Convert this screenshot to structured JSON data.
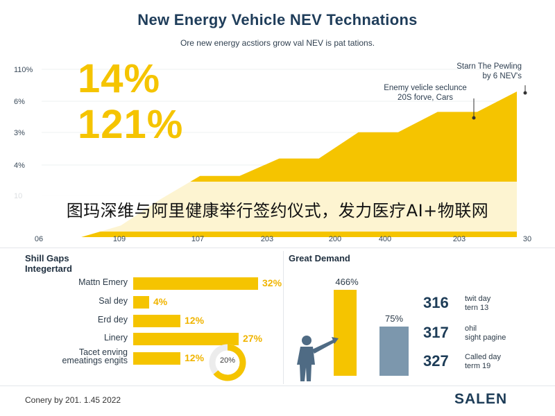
{
  "header": {
    "title": "New Energy Vehicle NEV Technations",
    "subtitle": "Ore new energy acstiors grow val NEV is pat tations."
  },
  "big_stats": [
    "14%",
    "121%"
  ],
  "callouts": {
    "top": [
      "Starn The Pewling",
      "by 6 NEV's"
    ],
    "mid": [
      "Enemy velicle seclunce",
      "20S forve, Cars"
    ]
  },
  "overlay_caption": "图玛深维与阿里健康举行签约仪式，发力医疗AI+物联网",
  "skills": {
    "title": [
      "Shill Gaps",
      "Integertard"
    ],
    "items": [
      {
        "label": [
          "Mattn Emery"
        ],
        "value": "32%",
        "fraction": 0.32
      },
      {
        "label": [
          "Sal dey"
        ],
        "value": "4%",
        "fraction": 0.04
      },
      {
        "label": [
          "Erd dey"
        ],
        "value": "12%",
        "fraction": 0.12
      },
      {
        "label": [
          "Linery"
        ],
        "value": "27%",
        "fraction": 0.27
      },
      {
        "label": [
          "Tacet enving",
          "emeatings engits"
        ],
        "value": "12%",
        "fraction": 0.12
      }
    ],
    "donut": {
      "label": "20%",
      "fraction": 0.2
    }
  },
  "demand": {
    "title": "Great Demand",
    "bars": [
      {
        "label": "466%",
        "color": "#f5c400"
      },
      {
        "label": "75%",
        "color": "#7c97ad"
      }
    ],
    "stats": [
      {
        "num": "316",
        "text": [
          "twit day",
          "tern 13"
        ]
      },
      {
        "num": "317",
        "text": [
          "ohil",
          "sight pagine"
        ]
      },
      {
        "num": "327",
        "text": [
          "Called day",
          "term 19"
        ]
      }
    ]
  },
  "footer": {
    "text": "Conery by 201. 1.45 2022",
    "brand": "SALEN"
  },
  "colors": {
    "accent": "#f5c400",
    "navy": "#1d3c57",
    "steel": "#7c97ad"
  },
  "chart_data": [
    {
      "type": "area",
      "title": "New Energy Vehicle NEV Technations",
      "subtitle": "Ore new energy acstiors grow val NEV is pat tations.",
      "y_tick_labels": [
        "110%",
        "6%",
        "3%",
        "4%",
        "10"
      ],
      "x_tick_labels": [
        "06",
        "109",
        "107",
        "203",
        "200",
        "400",
        "203",
        "30"
      ],
      "values": [
        0,
        0,
        0.8,
        2.6,
        4.2,
        4.2,
        5.4,
        5.4,
        7.2,
        7.2,
        8.6,
        8.6,
        10
      ],
      "ylim": [
        0,
        10
      ],
      "color": "#f5c400",
      "annotations": [
        "14%",
        "121%",
        "Starn The Pewling by 6 NEV's",
        "Enemy velicle seclunce 20S forve, Cars"
      ]
    },
    {
      "type": "bar",
      "orientation": "horizontal",
      "title": "Shill Gaps Integertard",
      "categories": [
        "Mattn Emery",
        "Sal dey",
        "Erd dey",
        "Linery",
        "Tacet enving emeatings engits"
      ],
      "values": [
        32,
        4,
        12,
        27,
        12
      ],
      "data_labels": [
        "32%",
        "4%",
        "12%",
        "27%",
        "12%"
      ]
    },
    {
      "type": "bar",
      "title": "Great Demand",
      "data_labels": [
        "466%",
        "75%"
      ],
      "values": [
        466,
        75
      ]
    }
  ]
}
